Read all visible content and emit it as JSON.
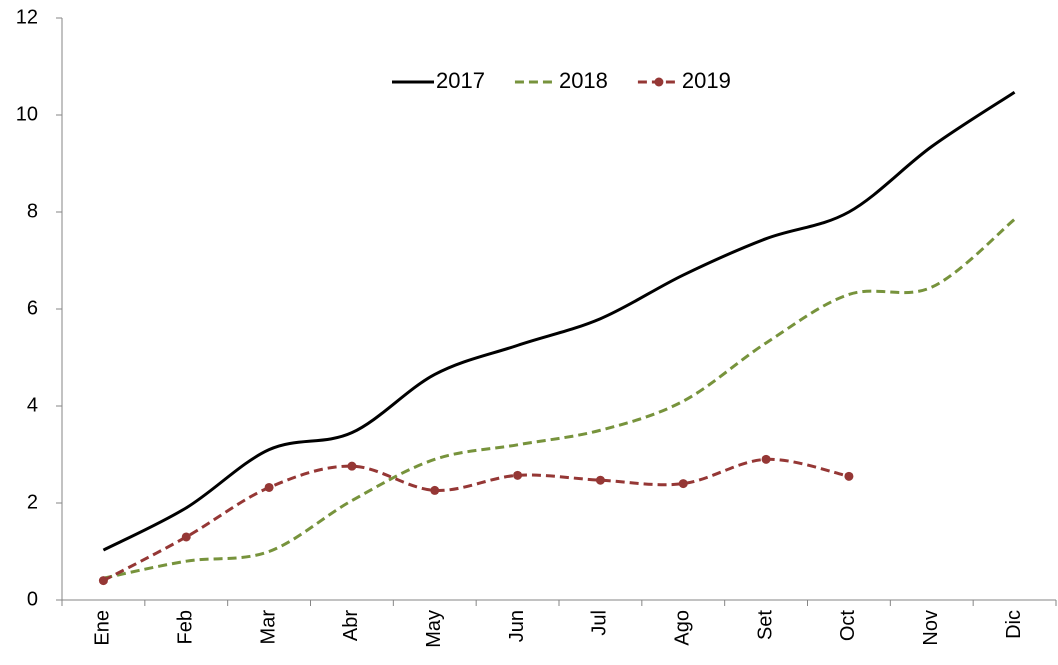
{
  "chart_data": {
    "type": "line",
    "categories": [
      "Ene",
      "Feb",
      "Mar",
      "Abr",
      "May",
      "Jun",
      "Jul",
      "Ago",
      "Set",
      "Oct",
      "Nov",
      "Dic"
    ],
    "series": [
      {
        "name": "2017",
        "color": "#000000",
        "dash": false,
        "marker": false,
        "values": [
          1.03,
          1.9,
          3.1,
          3.45,
          4.65,
          5.25,
          5.8,
          6.7,
          7.45,
          8.0,
          9.35,
          10.47
        ]
      },
      {
        "name": "2018",
        "color": "#77933c",
        "dash": true,
        "marker": false,
        "values": [
          0.45,
          0.8,
          1.0,
          2.05,
          2.9,
          3.2,
          3.5,
          4.1,
          5.3,
          6.3,
          6.45,
          7.85
        ]
      },
      {
        "name": "2019",
        "color": "#953735",
        "dash": true,
        "marker": true,
        "values": [
          0.4,
          1.3,
          2.32,
          2.76,
          2.26,
          2.57,
          2.47,
          2.4,
          2.9,
          2.55,
          null,
          null
        ]
      }
    ],
    "ylim": [
      0,
      12
    ],
    "yticks": [
      0,
      2,
      4,
      6,
      8,
      10,
      12
    ],
    "smooth": true,
    "legend": "top"
  }
}
